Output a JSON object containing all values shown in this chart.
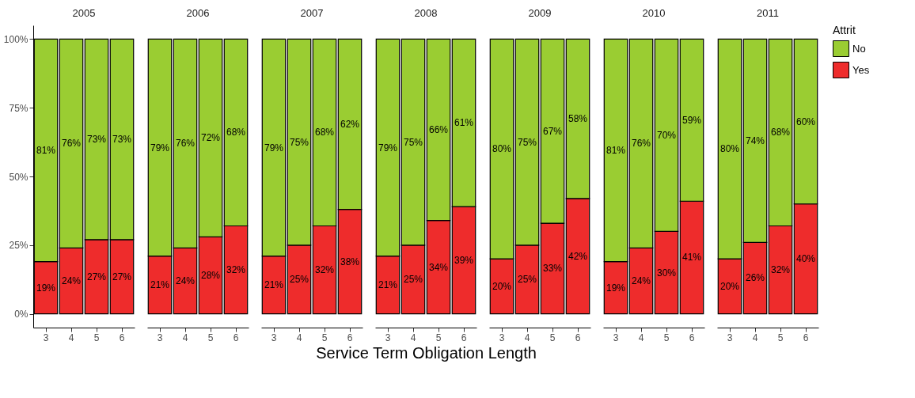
{
  "chart_data": [
    {
      "type": "bar",
      "title": "2005",
      "categories": [
        "3",
        "4",
        "5",
        "6"
      ],
      "stacked": true,
      "ylim": [
        -5,
        105
      ],
      "yticks": [
        {
          "value": 0,
          "label": "0%"
        },
        {
          "value": 25,
          "label": "25%"
        },
        {
          "value": 50,
          "label": "50%"
        },
        {
          "value": 75,
          "label": "75%"
        },
        {
          "value": 100,
          "label": "100%"
        }
      ],
      "grid": false,
      "series": [
        {
          "color": "#ee2c2c",
          "values": [
            19,
            24,
            27,
            27
          ],
          "value_labels": [
            "19%",
            "24%",
            "27%",
            "27%"
          ]
        },
        {
          "color": "#9acd32",
          "values": [
            81,
            76,
            73,
            73
          ],
          "value_labels": [
            "81%",
            "76%",
            "73%",
            "73%"
          ]
        }
      ]
    },
    {
      "type": "bar",
      "title": "2006",
      "categories": [
        "3",
        "4",
        "5",
        "6"
      ],
      "stacked": true,
      "tick_labels": "x",
      "grid": false,
      "series": [
        {
          "color": "#ee2c2c",
          "values": [
            21,
            24,
            28,
            32
          ],
          "value_labels": [
            "21%",
            "24%",
            "28%",
            "32%"
          ]
        },
        {
          "color": "#9acd32",
          "values": [
            79,
            76,
            72,
            68
          ],
          "value_labels": [
            "79%",
            "76%",
            "72%",
            "68%"
          ]
        }
      ]
    },
    {
      "type": "bar",
      "title": "2007",
      "categories": [
        "3",
        "4",
        "5",
        "6"
      ],
      "stacked": true,
      "tick_labels": "x",
      "grid": false,
      "series": [
        {
          "color": "#ee2c2c",
          "values": [
            21,
            25,
            32,
            38
          ],
          "value_labels": [
            "21%",
            "25%",
            "32%",
            "38%"
          ]
        },
        {
          "color": "#9acd32",
          "values": [
            79,
            75,
            68,
            62
          ],
          "value_labels": [
            "79%",
            "75%",
            "68%",
            "62%"
          ]
        }
      ]
    },
    {
      "type": "bar",
      "title": "2008",
      "categories": [
        "3",
        "4",
        "5",
        "6"
      ],
      "xlabel": "Service Term Obligation Length",
      "stacked": true,
      "tick_labels": "x",
      "grid": false,
      "series": [
        {
          "color": "#ee2c2c",
          "values": [
            21,
            25,
            34,
            39
          ],
          "value_labels": [
            "21%",
            "25%",
            "34%",
            "39%"
          ]
        },
        {
          "color": "#9acd32",
          "values": [
            79,
            75,
            66,
            61
          ],
          "value_labels": [
            "79%",
            "75%",
            "66%",
            "61%"
          ]
        }
      ]
    },
    {
      "type": "bar",
      "title": "2009",
      "categories": [
        "3",
        "4",
        "5",
        "6"
      ],
      "stacked": true,
      "tick_labels": "x",
      "grid": false,
      "series": [
        {
          "color": "#ee2c2c",
          "values": [
            20,
            25,
            33,
            42
          ],
          "value_labels": [
            "20%",
            "25%",
            "33%",
            "42%"
          ]
        },
        {
          "color": "#9acd32",
          "values": [
            80,
            75,
            67,
            58
          ],
          "value_labels": [
            "80%",
            "75%",
            "67%",
            "58%"
          ]
        }
      ]
    },
    {
      "type": "bar",
      "title": "2010",
      "categories": [
        "3",
        "4",
        "5",
        "6"
      ],
      "stacked": true,
      "tick_labels": "x",
      "grid": false,
      "series": [
        {
          "color": "#ee2c2c",
          "values": [
            19,
            24,
            30,
            41
          ],
          "value_labels": [
            "19%",
            "24%",
            "30%",
            "41%"
          ]
        },
        {
          "color": "#9acd32",
          "values": [
            81,
            76,
            70,
            59
          ],
          "value_labels": [
            "81%",
            "76%",
            "70%",
            "59%"
          ]
        }
      ]
    },
    {
      "type": "bar",
      "title": "2011",
      "categories": [
        "3",
        "4",
        "5",
        "6"
      ],
      "stacked": true,
      "tick_labels": "x",
      "grid": false,
      "legend": "right",
      "legend_title": "Attrit",
      "series": [
        {
          "name": "Yes",
          "color": "#ee2c2c",
          "values": [
            20,
            26,
            32,
            40
          ],
          "value_labels": [
            "20%",
            "26%",
            "32%",
            "40%"
          ]
        },
        {
          "name": "No",
          "color": "#9acd32",
          "values": [
            80,
            74,
            68,
            60
          ],
          "value_labels": [
            "80%",
            "74%",
            "68%",
            "60%"
          ]
        }
      ]
    }
  ]
}
